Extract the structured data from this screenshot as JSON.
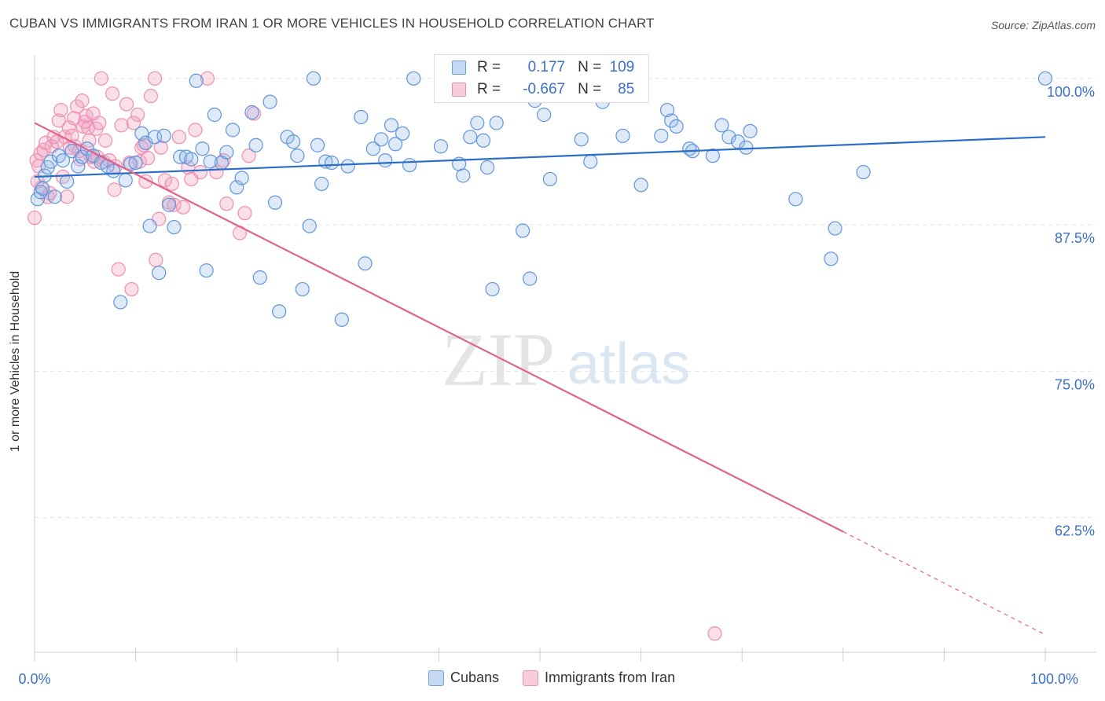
{
  "title": "CUBAN VS IMMIGRANTS FROM IRAN 1 OR MORE VEHICLES IN HOUSEHOLD CORRELATION CHART",
  "source": "Source: ZipAtlas.com",
  "watermark": {
    "zip": "ZIP",
    "atlas": "atlas"
  },
  "stats": {
    "r_label": "R =",
    "n_label": "N =",
    "rows": [
      {
        "series": "Cubans",
        "r": "0.177",
        "n": "109",
        "color": "#6b9fe0"
      },
      {
        "series": "Immigrants from Iran",
        "r": "-0.667",
        "n": "85",
        "color": "#ec8fae"
      }
    ]
  },
  "legend": {
    "cubans": "Cubans",
    "iran": "Immigrants from Iran"
  },
  "colors": {
    "blue": "#5f95dc",
    "blue_line": "#2a6cc9",
    "pink": "#ef8fb0",
    "pink_line": "#e0628f",
    "tick_label": "#3a6fc9"
  },
  "chart_data": {
    "type": "scatter",
    "title": "CUBAN VS IMMIGRANTS FROM IRAN 1 OR MORE VEHICLES IN HOUSEHOLD CORRELATION CHART",
    "xlabel": "",
    "ylabel": "1 or more Vehicles in Household",
    "xlim": [
      0,
      100
    ],
    "ylim": [
      51,
      102
    ],
    "x_tick_labels": [
      "0.0%",
      "100.0%"
    ],
    "y_ticks": [
      62.5,
      75.0,
      87.5,
      100.0
    ],
    "y_tick_labels": [
      "62.5%",
      "75.0%",
      "87.5%",
      "100.0%"
    ],
    "grid": true,
    "legend_position": "bottom",
    "series": [
      {
        "name": "Cubans",
        "trend": {
          "x": [
            0,
            100
          ],
          "y": [
            91.6,
            95.0
          ]
        },
        "points": [
          [
            0.3,
            89.7
          ],
          [
            0.6,
            90.3
          ],
          [
            0.8,
            90.6
          ],
          [
            1.0,
            91.7
          ],
          [
            1.3,
            92.4
          ],
          [
            1.6,
            92.9
          ],
          [
            2.0,
            89.9
          ],
          [
            2.4,
            93.4
          ],
          [
            2.8,
            93.0
          ],
          [
            3.2,
            91.2
          ],
          [
            3.7,
            93.8
          ],
          [
            4.3,
            92.5
          ],
          [
            4.7,
            93.3
          ],
          [
            5.2,
            94.0
          ],
          [
            5.8,
            93.4
          ],
          [
            6.6,
            92.8
          ],
          [
            7.2,
            92.5
          ],
          [
            7.8,
            92.1
          ],
          [
            8.5,
            80.9
          ],
          [
            9.0,
            91.3
          ],
          [
            9.5,
            92.7
          ],
          [
            10.0,
            92.8
          ],
          [
            10.6,
            95.3
          ],
          [
            11.0,
            94.5
          ],
          [
            11.4,
            87.4
          ],
          [
            11.9,
            95.0
          ],
          [
            12.3,
            83.4
          ],
          [
            12.8,
            95.1
          ],
          [
            13.3,
            89.2
          ],
          [
            13.8,
            87.3
          ],
          [
            14.4,
            93.3
          ],
          [
            15.0,
            93.3
          ],
          [
            15.5,
            93.1
          ],
          [
            16.0,
            99.8
          ],
          [
            16.6,
            94.0
          ],
          [
            17.0,
            83.6
          ],
          [
            17.4,
            92.9
          ],
          [
            17.8,
            96.9
          ],
          [
            18.5,
            92.8
          ],
          [
            19.0,
            93.7
          ],
          [
            19.6,
            95.6
          ],
          [
            20.0,
            90.7
          ],
          [
            20.5,
            91.5
          ],
          [
            21.5,
            97.1
          ],
          [
            21.9,
            94.3
          ],
          [
            22.3,
            83.0
          ],
          [
            23.3,
            98.0
          ],
          [
            23.8,
            89.4
          ],
          [
            24.2,
            80.1
          ],
          [
            25.0,
            95.0
          ],
          [
            25.6,
            94.6
          ],
          [
            26.0,
            93.4
          ],
          [
            26.5,
            82.0
          ],
          [
            27.2,
            87.4
          ],
          [
            27.6,
            100.0
          ],
          [
            28.0,
            94.3
          ],
          [
            28.4,
            91.0
          ],
          [
            28.8,
            92.9
          ],
          [
            29.4,
            92.8
          ],
          [
            30.4,
            79.4
          ],
          [
            31.0,
            92.5
          ],
          [
            32.3,
            96.7
          ],
          [
            32.7,
            84.2
          ],
          [
            33.5,
            94.0
          ],
          [
            34.3,
            94.8
          ],
          [
            34.7,
            93.0
          ],
          [
            35.3,
            96.0
          ],
          [
            35.7,
            94.4
          ],
          [
            36.4,
            95.3
          ],
          [
            37.1,
            92.6
          ],
          [
            37.5,
            100.0
          ],
          [
            40.2,
            94.2
          ],
          [
            42.0,
            92.7
          ],
          [
            42.4,
            91.7
          ],
          [
            43.1,
            95.0
          ],
          [
            43.8,
            96.2
          ],
          [
            44.4,
            94.7
          ],
          [
            44.8,
            92.4
          ],
          [
            45.3,
            82.0
          ],
          [
            45.7,
            96.2
          ],
          [
            48.3,
            87.0
          ],
          [
            49.0,
            82.9
          ],
          [
            49.5,
            98.1
          ],
          [
            50.4,
            96.9
          ],
          [
            51.0,
            91.4
          ],
          [
            53.1,
            99.0
          ],
          [
            54.1,
            94.8
          ],
          [
            55.0,
            92.9
          ],
          [
            56.2,
            98.0
          ],
          [
            58.2,
            95.1
          ],
          [
            60.0,
            90.9
          ],
          [
            62.0,
            95.1
          ],
          [
            62.6,
            97.3
          ],
          [
            63.0,
            96.4
          ],
          [
            63.5,
            95.9
          ],
          [
            64.8,
            94.0
          ],
          [
            65.1,
            93.8
          ],
          [
            67.1,
            93.4
          ],
          [
            68.0,
            96.0
          ],
          [
            68.7,
            95.0
          ],
          [
            69.6,
            94.6
          ],
          [
            70.4,
            94.1
          ],
          [
            70.8,
            95.5
          ],
          [
            75.3,
            89.7
          ],
          [
            78.8,
            84.6
          ],
          [
            79.2,
            87.2
          ],
          [
            82.0,
            92.0
          ],
          [
            100.0,
            100.0
          ]
        ]
      },
      {
        "name": "Immigrants from Iran",
        "trend": {
          "x": [
            0,
            80
          ],
          "y": [
            96.2,
            61.3
          ],
          "dashed_extension": {
            "x": [
              80,
              100
            ],
            "y": [
              61.3,
              52.5
            ]
          }
        },
        "points": [
          [
            0.0,
            88.1
          ],
          [
            0.2,
            93.0
          ],
          [
            0.3,
            91.2
          ],
          [
            0.4,
            92.5
          ],
          [
            0.6,
            93.6
          ],
          [
            0.7,
            90.7
          ],
          [
            0.9,
            93.9
          ],
          [
            1.1,
            94.5
          ],
          [
            1.3,
            89.9
          ],
          [
            1.5,
            90.2
          ],
          [
            1.7,
            94.2
          ],
          [
            1.9,
            95.0
          ],
          [
            2.2,
            94.6
          ],
          [
            2.4,
            96.4
          ],
          [
            2.6,
            97.3
          ],
          [
            2.8,
            91.6
          ],
          [
            3.0,
            95.0
          ],
          [
            3.2,
            89.9
          ],
          [
            3.4,
            95.8
          ],
          [
            3.5,
            94.1
          ],
          [
            3.7,
            95.1
          ],
          [
            3.9,
            96.6
          ],
          [
            4.0,
            94.2
          ],
          [
            4.2,
            97.6
          ],
          [
            4.4,
            93.8
          ],
          [
            4.5,
            93.1
          ],
          [
            4.7,
            98.1
          ],
          [
            4.8,
            95.9
          ],
          [
            5.0,
            96.3
          ],
          [
            5.1,
            96.8
          ],
          [
            5.3,
            95.8
          ],
          [
            5.4,
            94.7
          ],
          [
            5.6,
            93.3
          ],
          [
            5.8,
            97.0
          ],
          [
            5.9,
            92.9
          ],
          [
            6.1,
            95.7
          ],
          [
            6.2,
            93.3
          ],
          [
            6.4,
            96.2
          ],
          [
            6.6,
            100.0
          ],
          [
            6.8,
            92.9
          ],
          [
            7.0,
            94.7
          ],
          [
            7.4,
            93.0
          ],
          [
            7.7,
            98.7
          ],
          [
            7.9,
            90.5
          ],
          [
            8.0,
            92.5
          ],
          [
            8.3,
            83.7
          ],
          [
            8.6,
            96.0
          ],
          [
            9.1,
            97.8
          ],
          [
            9.4,
            92.8
          ],
          [
            9.6,
            82.0
          ],
          [
            9.8,
            96.2
          ],
          [
            10.2,
            96.9
          ],
          [
            10.4,
            92.9
          ],
          [
            10.6,
            94.1
          ],
          [
            10.8,
            94.3
          ],
          [
            11.0,
            91.2
          ],
          [
            11.2,
            93.2
          ],
          [
            11.5,
            98.5
          ],
          [
            11.9,
            100.0
          ],
          [
            12.0,
            84.5
          ],
          [
            12.3,
            88.0
          ],
          [
            12.5,
            94.1
          ],
          [
            12.9,
            91.3
          ],
          [
            13.3,
            89.4
          ],
          [
            13.6,
            91.0
          ],
          [
            13.8,
            89.2
          ],
          [
            14.3,
            95.0
          ],
          [
            14.7,
            89.0
          ],
          [
            15.2,
            92.4
          ],
          [
            15.5,
            91.4
          ],
          [
            15.9,
            95.6
          ],
          [
            16.4,
            92.0
          ],
          [
            17.1,
            100.0
          ],
          [
            18.0,
            92.0
          ],
          [
            18.7,
            93.0
          ],
          [
            19.0,
            89.3
          ],
          [
            20.3,
            86.8
          ],
          [
            20.8,
            88.5
          ],
          [
            21.2,
            93.4
          ],
          [
            21.7,
            97.0
          ],
          [
            67.3,
            52.6
          ]
        ]
      }
    ]
  }
}
